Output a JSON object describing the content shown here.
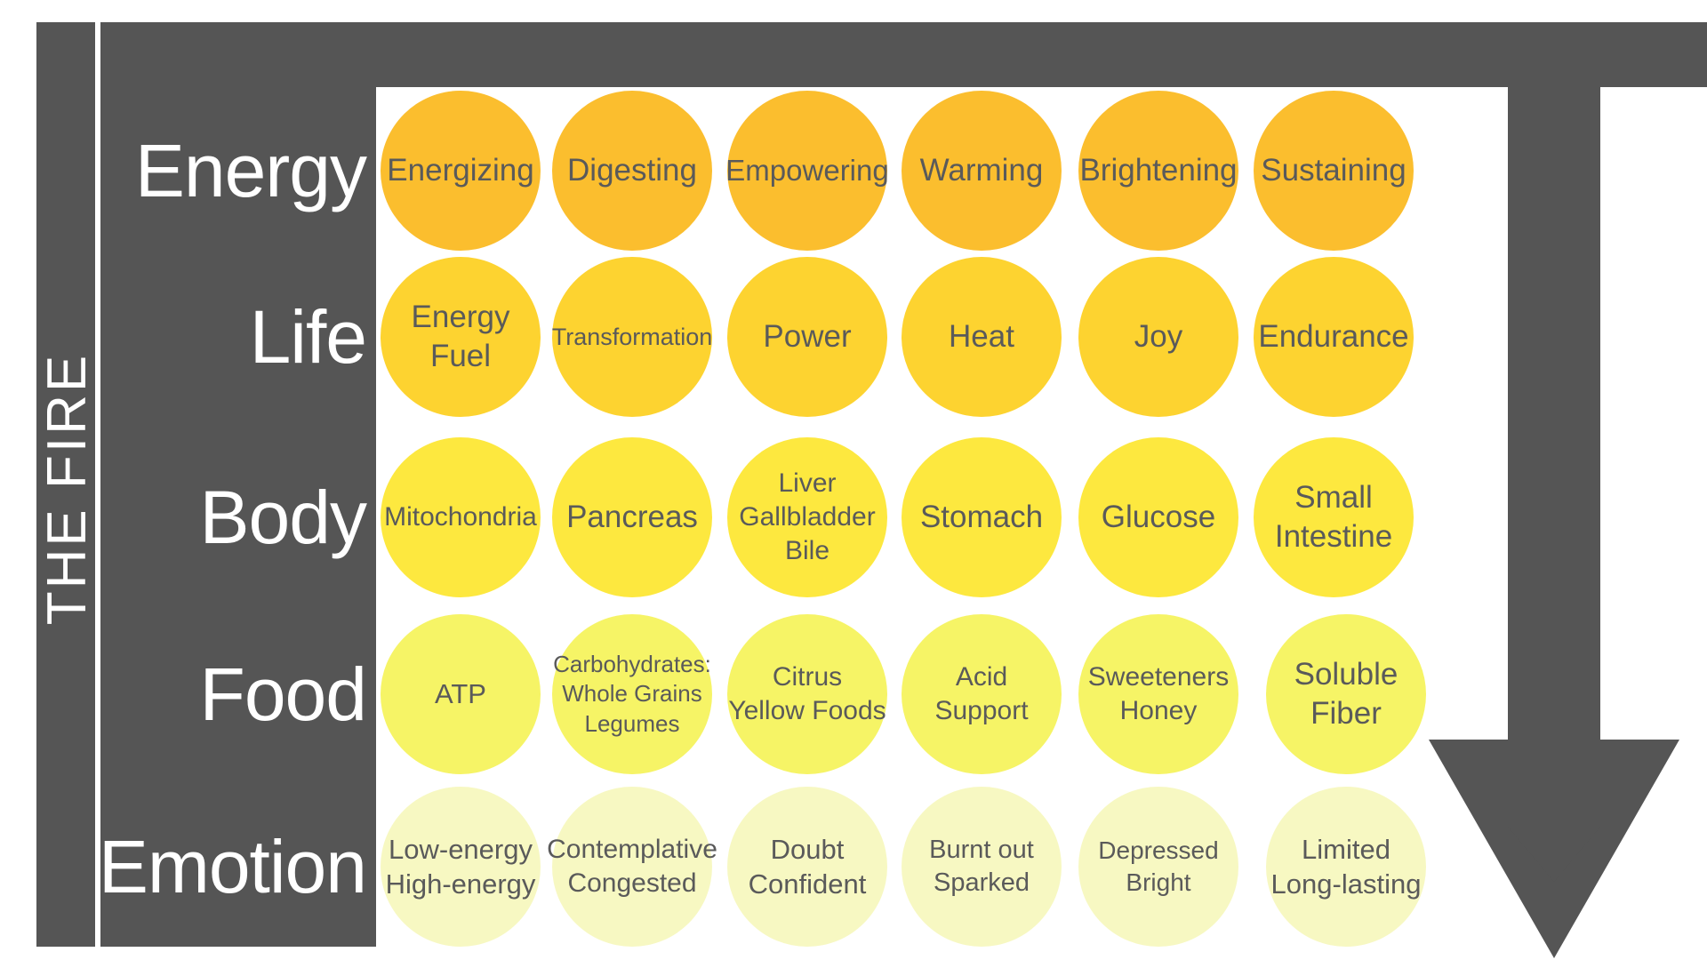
{
  "side_title": "THE FIRE",
  "colors": {
    "band": "#555555",
    "text_on_band": "#ffffff",
    "circle_text": "#5a5a5a",
    "row_colors": [
      "#fbbe2e",
      "#fdd330",
      "#fde83f",
      "#f6f466",
      "#f7f8c2"
    ]
  },
  "rows": [
    {
      "label": "Energy",
      "items": [
        {
          "lines": [
            "Energizing"
          ]
        },
        {
          "lines": [
            "Digesting"
          ]
        },
        {
          "lines": [
            "Empowering"
          ]
        },
        {
          "lines": [
            "Warming"
          ]
        },
        {
          "lines": [
            "Brightening"
          ]
        },
        {
          "lines": [
            "Sustaining"
          ]
        }
      ]
    },
    {
      "label": "Life",
      "items": [
        {
          "lines": [
            "Energy",
            "Fuel"
          ]
        },
        {
          "lines": [
            "Transformation"
          ]
        },
        {
          "lines": [
            "Power"
          ]
        },
        {
          "lines": [
            "Heat"
          ]
        },
        {
          "lines": [
            "Joy"
          ]
        },
        {
          "lines": [
            "Endurance"
          ]
        }
      ]
    },
    {
      "label": "Body",
      "items": [
        {
          "lines": [
            "Mitochondria"
          ]
        },
        {
          "lines": [
            "Pancreas"
          ]
        },
        {
          "lines": [
            "Liver",
            "Gallbladder",
            "Bile"
          ]
        },
        {
          "lines": [
            "Stomach"
          ]
        },
        {
          "lines": [
            "Glucose"
          ]
        },
        {
          "lines": [
            "Small",
            "Intestine"
          ]
        }
      ]
    },
    {
      "label": "Food",
      "items": [
        {
          "lines": [
            "ATP"
          ]
        },
        {
          "lines": [
            "Carbohydrates:",
            "Whole Grains",
            "Legumes"
          ]
        },
        {
          "lines": [
            "Citrus",
            "Yellow Foods"
          ]
        },
        {
          "lines": [
            "Acid",
            "Support"
          ]
        },
        {
          "lines": [
            "Sweeteners",
            "Honey"
          ]
        },
        {
          "lines": [
            "Soluble",
            "Fiber"
          ]
        }
      ]
    },
    {
      "label": "Emotion",
      "items": [
        {
          "lines": [
            "Low-energy",
            "High-energy"
          ]
        },
        {
          "lines": [
            "Contemplative",
            "Congested"
          ]
        },
        {
          "lines": [
            "Doubt",
            "Confident"
          ]
        },
        {
          "lines": [
            "Burnt out",
            "Sparked"
          ]
        },
        {
          "lines": [
            "Depressed",
            "Bright"
          ]
        },
        {
          "lines": [
            "Limited",
            "Long-lasting"
          ]
        }
      ]
    }
  ]
}
